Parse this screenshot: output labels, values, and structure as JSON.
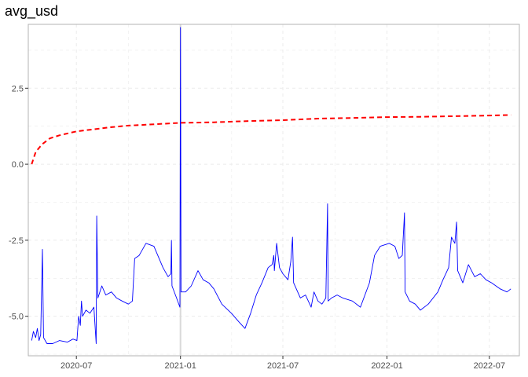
{
  "chart_data": {
    "type": "line",
    "title": "avg_usd",
    "xlabel": "",
    "ylabel": "",
    "grid": true,
    "xlim": [
      "2020-04-07",
      "2022-08-23"
    ],
    "ylim": [
      -6.3,
      4.6
    ],
    "x_ticks": [
      "2020-07-01",
      "2021-01-01",
      "2021-07-01",
      "2022-01-01",
      "2022-07-01"
    ],
    "x_tick_labels": [
      "2020-07",
      "2021-01",
      "2021-07",
      "2022-01",
      "2022-07"
    ],
    "y_ticks": [
      -5.0,
      -2.5,
      0.0,
      2.5
    ],
    "y_tick_labels": [
      "-5.0",
      "-2.5",
      "0.0",
      "2.5"
    ],
    "vline": {
      "x": "2021-01-01",
      "color": "#d9d9d9"
    },
    "series": [
      {
        "style": "solid",
        "color": "#0000ff",
        "points": [
          [
            "2020-04-13",
            -5.8
          ],
          [
            "2020-04-16",
            -5.5
          ],
          [
            "2020-04-20",
            -5.7
          ],
          [
            "2020-04-23",
            -5.4
          ],
          [
            "2020-04-26",
            -5.8
          ],
          [
            "2020-04-29",
            -5.6
          ],
          [
            "2020-05-02",
            -2.8
          ],
          [
            "2020-05-04",
            -5.7
          ],
          [
            "2020-05-10",
            -5.9
          ],
          [
            "2020-05-20",
            -5.9
          ],
          [
            "2020-06-01",
            -5.8
          ],
          [
            "2020-06-15",
            -5.85
          ],
          [
            "2020-06-25",
            -5.75
          ],
          [
            "2020-07-02",
            -5.8
          ],
          [
            "2020-07-05",
            -5.0
          ],
          [
            "2020-07-08",
            -5.3
          ],
          [
            "2020-07-10",
            -4.5
          ],
          [
            "2020-07-12",
            -5.0
          ],
          [
            "2020-07-18",
            -4.8
          ],
          [
            "2020-07-25",
            -4.9
          ],
          [
            "2020-08-01",
            -4.7
          ],
          [
            "2020-08-05",
            -5.9
          ],
          [
            "2020-08-06",
            -1.7
          ],
          [
            "2020-08-08",
            -4.4
          ],
          [
            "2020-08-15",
            -4.0
          ],
          [
            "2020-08-22",
            -4.3
          ],
          [
            "2020-09-01",
            -4.2
          ],
          [
            "2020-09-10",
            -4.4
          ],
          [
            "2020-09-20",
            -4.5
          ],
          [
            "2020-10-01",
            -4.6
          ],
          [
            "2020-10-08",
            -4.5
          ],
          [
            "2020-10-12",
            -3.1
          ],
          [
            "2020-10-20",
            -3.0
          ],
          [
            "2020-11-01",
            -2.6
          ],
          [
            "2020-11-15",
            -2.7
          ],
          [
            "2020-12-01",
            -3.4
          ],
          [
            "2020-12-10",
            -3.7
          ],
          [
            "2020-12-15",
            -3.6
          ],
          [
            "2020-12-16",
            -2.5
          ],
          [
            "2020-12-17",
            -4.0
          ],
          [
            "2020-12-25",
            -4.4
          ],
          [
            "2020-12-31",
            -4.7
          ],
          [
            "2021-01-01",
            4.5
          ],
          [
            "2021-01-02",
            -4.2
          ],
          [
            "2021-01-10",
            -4.2
          ],
          [
            "2021-01-20",
            -4.0
          ],
          [
            "2021-02-01",
            -3.5
          ],
          [
            "2021-02-10",
            -3.8
          ],
          [
            "2021-02-20",
            -3.9
          ],
          [
            "2021-03-01",
            -4.1
          ],
          [
            "2021-03-15",
            -4.6
          ],
          [
            "2021-04-01",
            -4.9
          ],
          [
            "2021-04-15",
            -5.2
          ],
          [
            "2021-04-25",
            -5.4
          ],
          [
            "2021-05-05",
            -4.9
          ],
          [
            "2021-05-15",
            -4.3
          ],
          [
            "2021-05-25",
            -3.9
          ],
          [
            "2021-06-05",
            -3.4
          ],
          [
            "2021-06-12",
            -3.3
          ],
          [
            "2021-06-15",
            -3.0
          ],
          [
            "2021-06-16",
            -3.5
          ],
          [
            "2021-06-20",
            -2.6
          ],
          [
            "2021-06-25",
            -3.4
          ],
          [
            "2021-07-01",
            -3.6
          ],
          [
            "2021-07-10",
            -3.8
          ],
          [
            "2021-07-15",
            -3.2
          ],
          [
            "2021-07-18",
            -2.4
          ],
          [
            "2021-07-20",
            -3.9
          ],
          [
            "2021-08-01",
            -4.4
          ],
          [
            "2021-08-10",
            -4.3
          ],
          [
            "2021-08-20",
            -4.7
          ],
          [
            "2021-08-25",
            -4.2
          ],
          [
            "2021-09-01",
            -4.5
          ],
          [
            "2021-09-08",
            -4.6
          ],
          [
            "2021-09-15",
            -4.4
          ],
          [
            "2021-09-18",
            -1.3
          ],
          [
            "2021-09-19",
            -4.5
          ],
          [
            "2021-09-25",
            -4.4
          ],
          [
            "2021-10-05",
            -4.3
          ],
          [
            "2021-10-15",
            -4.4
          ],
          [
            "2021-11-01",
            -4.5
          ],
          [
            "2021-11-15",
            -4.7
          ],
          [
            "2021-12-01",
            -3.9
          ],
          [
            "2021-12-10",
            -3.0
          ],
          [
            "2021-12-20",
            -2.7
          ],
          [
            "2022-01-05",
            -2.6
          ],
          [
            "2022-01-15",
            -2.7
          ],
          [
            "2022-01-22",
            -3.1
          ],
          [
            "2022-01-28",
            -3.0
          ],
          [
            "2022-02-01",
            -1.6
          ],
          [
            "2022-02-02",
            -4.2
          ],
          [
            "2022-02-10",
            -4.5
          ],
          [
            "2022-02-20",
            -4.6
          ],
          [
            "2022-03-01",
            -4.8
          ],
          [
            "2022-03-15",
            -4.6
          ],
          [
            "2022-04-01",
            -4.2
          ],
          [
            "2022-04-10",
            -3.8
          ],
          [
            "2022-04-20",
            -3.4
          ],
          [
            "2022-04-25",
            -2.4
          ],
          [
            "2022-05-01",
            -2.6
          ],
          [
            "2022-05-04",
            -1.9
          ],
          [
            "2022-05-06",
            -3.5
          ],
          [
            "2022-05-15",
            -3.9
          ],
          [
            "2022-05-25",
            -3.3
          ],
          [
            "2022-06-05",
            -3.7
          ],
          [
            "2022-06-15",
            -3.6
          ],
          [
            "2022-06-25",
            -3.8
          ],
          [
            "2022-07-05",
            -3.9
          ],
          [
            "2022-07-20",
            -4.1
          ],
          [
            "2022-08-01",
            -4.2
          ],
          [
            "2022-08-08",
            -4.1
          ]
        ]
      },
      {
        "style": "dashed",
        "color": "#ff0000",
        "points": [
          [
            "2020-04-13",
            0.0
          ],
          [
            "2020-04-20",
            0.4
          ],
          [
            "2020-05-01",
            0.65
          ],
          [
            "2020-05-15",
            0.85
          ],
          [
            "2020-06-01",
            0.95
          ],
          [
            "2020-07-01",
            1.08
          ],
          [
            "2020-08-01",
            1.15
          ],
          [
            "2020-09-01",
            1.22
          ],
          [
            "2020-10-01",
            1.27
          ],
          [
            "2020-11-01",
            1.3
          ],
          [
            "2020-12-01",
            1.33
          ],
          [
            "2021-01-01",
            1.36
          ],
          [
            "2021-03-01",
            1.38
          ],
          [
            "2021-05-01",
            1.42
          ],
          [
            "2021-07-01",
            1.45
          ],
          [
            "2021-09-01",
            1.5
          ],
          [
            "2021-11-01",
            1.52
          ],
          [
            "2022-01-01",
            1.55
          ],
          [
            "2022-03-01",
            1.56
          ],
          [
            "2022-05-01",
            1.58
          ],
          [
            "2022-07-01",
            1.6
          ],
          [
            "2022-08-08",
            1.62
          ]
        ]
      }
    ]
  }
}
